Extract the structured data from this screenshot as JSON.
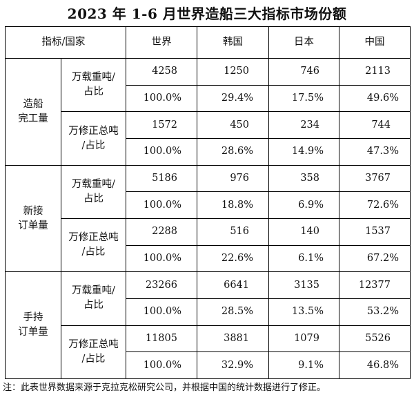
{
  "title": "2023 年 1-6 月世界造船三大指标市场份额",
  "header": {
    "indicator_country": "指标/国家",
    "countries": [
      "世界",
      "韩国",
      "日本",
      "中国"
    ]
  },
  "groups": [
    {
      "label": "造船\n完工量",
      "metrics": [
        {
          "label": "万载重吨/\n占比",
          "values": [
            "4258",
            "1250",
            "746",
            "2113"
          ],
          "shares": [
            "100.0%",
            "29.4%",
            "17.5%",
            "49.6%"
          ]
        },
        {
          "label": "万修正总吨\n/占比",
          "values": [
            "1572",
            "450",
            "234",
            "744"
          ],
          "shares": [
            "100.0%",
            "28.6%",
            "14.9%",
            "47.3%"
          ]
        }
      ]
    },
    {
      "label": "新接\n订单量",
      "metrics": [
        {
          "label": "万载重吨/\n占比",
          "values": [
            "5186",
            "976",
            "358",
            "3767"
          ],
          "shares": [
            "100.0%",
            "18.8%",
            "6.9%",
            "72.6%"
          ]
        },
        {
          "label": "万修正总吨\n/占比",
          "values": [
            "2288",
            "516",
            "140",
            "1537"
          ],
          "shares": [
            "100.0%",
            "22.6%",
            "6.1%",
            "67.2%"
          ]
        }
      ]
    },
    {
      "label": "手持\n订单量",
      "metrics": [
        {
          "label": "万载重吨/\n占比",
          "values": [
            "23266",
            "6641",
            "3135",
            "12377"
          ],
          "shares": [
            "100.0%",
            "28.5%",
            "13.5%",
            "53.2%"
          ]
        },
        {
          "label": "万修正总吨\n/占比",
          "values": [
            "11805",
            "3881",
            "1079",
            "5526"
          ],
          "shares": [
            "100.0%",
            "32.9%",
            "9.1%",
            "46.8%"
          ]
        }
      ]
    }
  ],
  "note": "注：此表世界数据来源于克拉克松研究公司，并根据中国的统计数据进行了修正。"
}
